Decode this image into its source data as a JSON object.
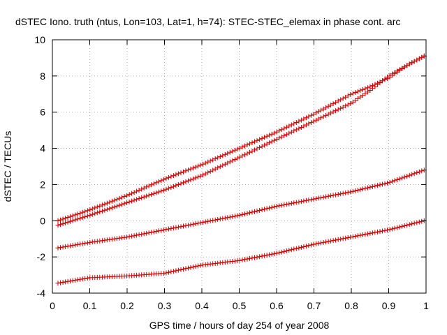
{
  "chart_data": {
    "type": "scatter",
    "title": "dSTEC Iono. truth (ntus, Lon=103, Lat=1, h=74): STEC-STEC_elemax in phase cont. arc",
    "xlabel": "GPS time / hours of day 254 of year 2008",
    "ylabel": "dSTEC  / TECUs",
    "xlim": [
      0,
      1
    ],
    "ylim": [
      -4,
      10
    ],
    "xticks": [
      0,
      0.1,
      0.2,
      0.3,
      0.4,
      0.5,
      0.6,
      0.7,
      0.8,
      0.9,
      1
    ],
    "yticks": [
      -4,
      -2,
      0,
      2,
      4,
      6,
      8,
      10
    ],
    "xtick_labels": [
      "0",
      "0.1",
      "0.2",
      "0.3",
      "0.4",
      "0.5",
      "0.6",
      "0.7",
      "0.8",
      "0.9",
      "1"
    ],
    "ytick_labels": [
      "-4",
      "-2",
      "0",
      "2",
      "4",
      "6",
      "8",
      "10"
    ],
    "grid": true,
    "marker": "plus",
    "color": "#cc0000",
    "x_range": [
      0.015,
      0.995
    ],
    "points_per_series": 150,
    "series": [
      {
        "x": [
          0.015,
          0.1,
          0.2,
          0.3,
          0.4,
          0.5,
          0.6,
          0.7,
          0.8,
          0.85,
          0.9,
          0.95,
          0.995
        ],
        "values": [
          0.0,
          0.6,
          1.4,
          2.3,
          3.1,
          4.0,
          4.9,
          5.9,
          7.0,
          7.4,
          7.9,
          8.6,
          9.1
        ]
      },
      {
        "x": [
          0.015,
          0.1,
          0.2,
          0.3,
          0.4,
          0.5,
          0.6,
          0.7,
          0.8,
          0.85,
          0.9,
          0.95,
          0.995
        ],
        "values": [
          -0.25,
          0.3,
          1.0,
          1.7,
          2.5,
          3.5,
          4.5,
          5.5,
          6.5,
          7.2,
          8.0,
          8.6,
          9.1
        ]
      },
      {
        "x": [
          0.015,
          0.1,
          0.2,
          0.3,
          0.4,
          0.5,
          0.6,
          0.7,
          0.8,
          0.9,
          0.995
        ],
        "values": [
          -1.5,
          -1.2,
          -0.9,
          -0.5,
          -0.1,
          0.3,
          0.8,
          1.2,
          1.6,
          2.1,
          2.8
        ]
      },
      {
        "x": [
          0.015,
          0.1,
          0.2,
          0.3,
          0.4,
          0.5,
          0.6,
          0.7,
          0.8,
          0.9,
          0.995
        ],
        "values": [
          -3.45,
          -3.15,
          -3.05,
          -2.9,
          -2.45,
          -2.2,
          -1.8,
          -1.3,
          -0.9,
          -0.5,
          0.0
        ]
      }
    ]
  }
}
